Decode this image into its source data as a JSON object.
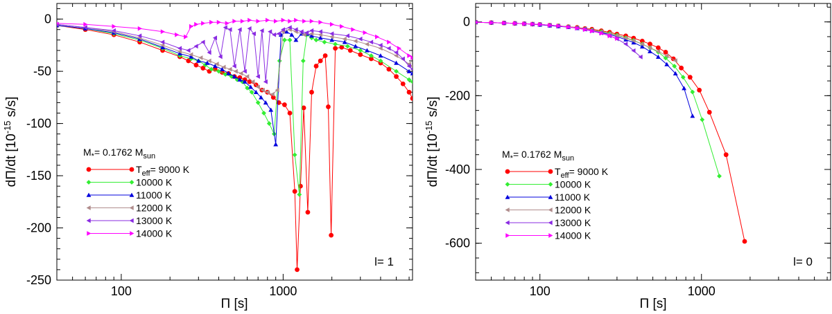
{
  "chart_data": [
    {
      "type": "line",
      "panel_label": "l= 1",
      "xlabel": "Π [s]",
      "ylabel_main": "dΠ/dt [10",
      "ylabel_exp": "-15",
      "ylabel_unit": " s/s]",
      "xscale": "log",
      "xlim": [
        40,
        6300
      ],
      "ylim": [
        -250,
        15
      ],
      "xticks": [
        100,
        1000
      ],
      "xtick_labels": [
        "100",
        "1000"
      ],
      "yticks": [
        0,
        -50,
        -100,
        -150,
        -200,
        -250
      ],
      "ytick_labels": [
        "0",
        "-50",
        "-100",
        "-150",
        "-200",
        "-250"
      ],
      "grid": false,
      "legend_position": "lower-left",
      "legend_mass_main": "M",
      "legend_mass_sub": "*",
      "legend_mass_mid": "= 0.1762 M",
      "legend_mass_unit": "sun",
      "series": [
        {
          "name_main": "T",
          "name_sub": "eff",
          "name_rest": "= 9000 K",
          "color": "#ff0000",
          "marker": "circle",
          "x": [
            40,
            60,
            90,
            130,
            180,
            230,
            260,
            290,
            320,
            350,
            380,
            420,
            460,
            500,
            540,
            580,
            620,
            680,
            740,
            800,
            870,
            940,
            1020,
            1100,
            1180,
            1220,
            1280,
            1340,
            1420,
            1500,
            1600,
            1700,
            1820,
            1900,
            1980,
            2100,
            2300,
            2600,
            3000,
            3500,
            4000,
            4500,
            5000,
            5500,
            6000,
            6300
          ],
          "y": [
            -6,
            -10,
            -15,
            -22,
            -30,
            -36,
            -40,
            -44,
            -47,
            -50,
            -48,
            -51,
            -52,
            -55,
            -56,
            -58,
            -60,
            -63,
            -68,
            -70,
            -75,
            -80,
            -82,
            -90,
            -165,
            -240,
            -160,
            -85,
            -185,
            -70,
            -45,
            -40,
            -35,
            -84,
            -207,
            -28,
            -27,
            -30,
            -34,
            -38,
            -42,
            -48,
            -55,
            -62,
            -70,
            -76
          ]
        },
        {
          "name_main": "",
          "name_sub": "",
          "name_rest": "10000 K",
          "color": "#33ee33",
          "marker": "diamond",
          "x": [
            40,
            60,
            90,
            130,
            180,
            230,
            270,
            300,
            330,
            360,
            400,
            440,
            480,
            520,
            560,
            600,
            640,
            700,
            760,
            820,
            880,
            950,
            1020,
            1100,
            1180,
            1260,
            1330,
            1400,
            1500,
            1600,
            1800,
            2100,
            2500,
            3000,
            3500,
            4000,
            5000,
            6000,
            6300
          ],
          "y": [
            -6,
            -9,
            -14,
            -20,
            -28,
            -35,
            -38,
            -40,
            -44,
            -48,
            -50,
            -53,
            -55,
            -58,
            -60,
            -66,
            -70,
            -80,
            -90,
            -100,
            -110,
            -40,
            -20,
            -20,
            -130,
            -168,
            -40,
            -15,
            -18,
            -20,
            -22,
            -24,
            -26,
            -30,
            -35,
            -40,
            -50,
            -58,
            -60
          ]
        },
        {
          "name_main": "",
          "name_sub": "",
          "name_rest": "11000 K",
          "color": "#0000dd",
          "marker": "triangle-up",
          "x": [
            40,
            60,
            90,
            130,
            180,
            230,
            270,
            300,
            340,
            380,
            420,
            460,
            500,
            540,
            580,
            630,
            680,
            730,
            780,
            840,
            900,
            970,
            1050,
            1130,
            1200,
            1300,
            1400,
            1500,
            1700,
            2000,
            2400,
            2800,
            3300,
            4000,
            5000,
            6000,
            6300
          ],
          "y": [
            -6,
            -9,
            -13,
            -19,
            -27,
            -33,
            -36,
            -40,
            -42,
            -45,
            -48,
            -52,
            -55,
            -58,
            -60,
            -65,
            -70,
            -75,
            -80,
            -87,
            -120,
            -15,
            -12,
            -15,
            -20,
            -14,
            -14,
            -16,
            -18,
            -20,
            -22,
            -26,
            -30,
            -35,
            -42,
            -50,
            -52
          ]
        },
        {
          "name_main": "",
          "name_sub": "",
          "name_rest": "12000 K",
          "color": "#b08c8c",
          "marker": "triangle-left",
          "x": [
            40,
            60,
            90,
            130,
            180,
            230,
            270,
            310,
            350,
            390,
            430,
            470,
            510,
            550,
            600,
            650,
            700,
            750,
            800,
            860,
            920,
            1000,
            1100,
            1200,
            1350,
            1500,
            1700,
            2000,
            2400,
            2800,
            3300,
            4000,
            5000,
            6000,
            6300
          ],
          "y": [
            -5,
            -8,
            -12,
            -18,
            -25,
            -31,
            -34,
            -37,
            -40,
            -43,
            -46,
            -48,
            -50,
            -52,
            -55,
            -60,
            -65,
            -68,
            -70,
            -72,
            -68,
            -12,
            -10,
            -12,
            -15,
            -14,
            -15,
            -17,
            -19,
            -21,
            -24,
            -28,
            -35,
            -43,
            -45
          ]
        },
        {
          "name_main": "",
          "name_sub": "",
          "name_rest": "13000 K",
          "color": "#8a2be2",
          "marker": "triangle-left",
          "x": [
            40,
            60,
            90,
            130,
            180,
            230,
            260,
            290,
            320,
            350,
            380,
            410,
            440,
            470,
            500,
            540,
            580,
            620,
            660,
            700,
            740,
            780,
            830,
            880,
            940,
            1000,
            1100,
            1200,
            1300,
            1400,
            1500,
            1700,
            2000,
            2500,
            3000,
            3500,
            4000,
            4500,
            5000,
            5500,
            6000,
            6300
          ],
          "y": [
            -5,
            -8,
            -11,
            -16,
            -22,
            -28,
            -30,
            -26,
            -22,
            -32,
            -18,
            -36,
            -8,
            -10,
            -45,
            -10,
            -50,
            -9,
            -14,
            -55,
            -11,
            -60,
            -12,
            -15,
            -14,
            -10,
            -8,
            -10,
            -12,
            -13,
            -11,
            -12,
            -14,
            -16,
            -19,
            -22,
            -25,
            -28,
            -32,
            -38,
            -45,
            -48
          ]
        },
        {
          "name_main": "",
          "name_sub": "",
          "name_rest": "14000 K",
          "color": "#ff00ff",
          "marker": "triangle-right",
          "x": [
            40,
            60,
            90,
            130,
            180,
            220,
            250,
            270,
            290,
            320,
            360,
            400,
            450,
            500,
            560,
            620,
            700,
            800,
            900,
            1000,
            1100,
            1200,
            1350,
            1500,
            1700,
            2000,
            2300,
            2700,
            3200,
            3800,
            4500,
            5200,
            6000,
            6300
          ],
          "y": [
            -4,
            -5,
            -7,
            -9,
            -12,
            -15,
            -17,
            -7,
            -5,
            -4,
            -3,
            -3,
            -4,
            -2,
            -2,
            -1,
            -2,
            -1,
            -2,
            -1,
            -2,
            -1,
            -2,
            -2,
            -3,
            -5,
            -7,
            -10,
            -13,
            -17,
            -22,
            -28,
            -35,
            -37
          ]
        }
      ]
    },
    {
      "type": "line",
      "panel_label": "l= 0",
      "xlabel": "Π [s]",
      "ylabel_main": "dΠ/dt [10",
      "ylabel_exp": "-15",
      "ylabel_unit": " s/s]",
      "xscale": "log",
      "xlim": [
        40,
        6300
      ],
      "ylim": [
        -700,
        50
      ],
      "xticks": [
        100,
        1000
      ],
      "xtick_labels": [
        "100",
        "1000"
      ],
      "yticks": [
        0,
        -200,
        -400,
        -600
      ],
      "ytick_labels": [
        "0",
        "-200",
        "-400",
        "-600"
      ],
      "grid": false,
      "legend_position": "lower-left",
      "legend_mass_main": "M",
      "legend_mass_sub": "*",
      "legend_mass_mid": "= 0.1762 M",
      "legend_mass_unit": "sun",
      "series": [
        {
          "name_main": "T",
          "name_sub": "eff",
          "name_rest": "= 9000 K",
          "color": "#ff0000",
          "marker": "circle",
          "x": [
            40,
            50,
            60,
            70,
            80,
            90,
            100,
            115,
            130,
            150,
            170,
            190,
            210,
            240,
            270,
            300,
            340,
            380,
            430,
            480,
            540,
            600,
            670,
            750,
            850,
            970,
            1120,
            1420,
            1850
          ],
          "y": [
            -1,
            -2,
            -3,
            -4,
            -5,
            -6,
            -7,
            -9,
            -11,
            -13,
            -15,
            -18,
            -20,
            -24,
            -28,
            -33,
            -38,
            -44,
            -52,
            -60,
            -70,
            -82,
            -100,
            -125,
            -150,
            -185,
            -245,
            -360,
            -595
          ]
        },
        {
          "name_main": "",
          "name_sub": "",
          "name_rest": "10000 K",
          "color": "#33ee33",
          "marker": "diamond",
          "x": [
            40,
            50,
            60,
            70,
            80,
            90,
            100,
            115,
            130,
            150,
            170,
            190,
            210,
            240,
            270,
            300,
            340,
            380,
            430,
            480,
            540,
            600,
            680,
            770,
            880,
            1010,
            1290
          ],
          "y": [
            -1,
            -2,
            -3,
            -4,
            -5,
            -6,
            -7,
            -9,
            -11,
            -13,
            -16,
            -19,
            -22,
            -26,
            -31,
            -36,
            -43,
            -50,
            -60,
            -70,
            -82,
            -98,
            -120,
            -150,
            -190,
            -265,
            -418
          ]
        },
        {
          "name_main": "",
          "name_sub": "",
          "name_rest": "11000 K",
          "color": "#0000dd",
          "marker": "triangle-up",
          "x": [
            40,
            50,
            60,
            70,
            80,
            90,
            100,
            115,
            130,
            150,
            170,
            190,
            210,
            240,
            270,
            300,
            340,
            380,
            430,
            480,
            540,
            610,
            690,
            780,
            880
          ],
          "y": [
            -1,
            -2,
            -3,
            -4,
            -5,
            -6,
            -8,
            -10,
            -12,
            -14,
            -17,
            -20,
            -24,
            -29,
            -34,
            -40,
            -48,
            -56,
            -67,
            -80,
            -95,
            -115,
            -140,
            -180,
            -255
          ]
        },
        {
          "name_main": "",
          "name_sub": "",
          "name_rest": "12000 K",
          "color": "#b08c8c",
          "marker": "triangle-left",
          "x": [
            40,
            50,
            60,
            70,
            80,
            90,
            100,
            115,
            130,
            150,
            170,
            190,
            210,
            240,
            270,
            300,
            340,
            380,
            430,
            480,
            540,
            610,
            690
          ],
          "y": [
            -1,
            -2,
            -3,
            -4,
            -5,
            -6,
            -7,
            -9,
            -11,
            -13,
            -16,
            -19,
            -22,
            -27,
            -32,
            -37,
            -44,
            -51,
            -60,
            -70,
            -80,
            -92,
            -105
          ]
        },
        {
          "name_main": "",
          "name_sub": "",
          "name_rest": "13000 K",
          "color": "#8a2be2",
          "marker": "triangle-left",
          "x": [
            40,
            50,
            60,
            70,
            80,
            90,
            100,
            115,
            130,
            150,
            170,
            190,
            210,
            240,
            270,
            300,
            340,
            380,
            420
          ],
          "y": [
            -1,
            -2,
            -3,
            -4,
            -5,
            -6,
            -7,
            -9,
            -11,
            -14,
            -17,
            -20,
            -24,
            -30,
            -38,
            -46,
            -60,
            -78,
            -95
          ]
        },
        {
          "name_main": "",
          "name_sub": "",
          "name_rest": "14000 K",
          "color": "#ff00ff",
          "marker": "triangle-right",
          "x": [
            40,
            50,
            60,
            70,
            80,
            90,
            100,
            115,
            130,
            150,
            170,
            190,
            210,
            240,
            270,
            300
          ],
          "y": [
            -1,
            -2,
            -3,
            -4,
            -5,
            -6,
            -7,
            -9,
            -11,
            -14,
            -17,
            -21,
            -25,
            -31,
            -38,
            -45
          ]
        }
      ]
    }
  ]
}
